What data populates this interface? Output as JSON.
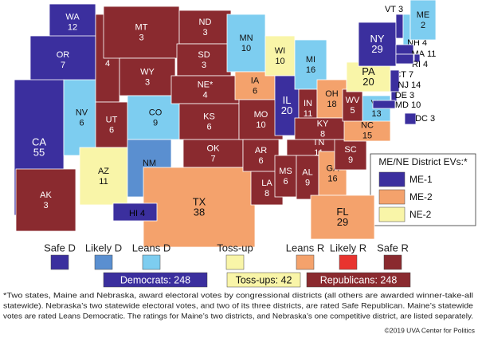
{
  "legend": [
    {
      "label": "Safe D",
      "color": "#3b2f9e"
    },
    {
      "label": "Likely D",
      "color": "#5a8fd0"
    },
    {
      "label": "Leans D",
      "color": "#7dcdf0"
    },
    {
      "label": "Toss-up",
      "color": "#f9f5a8"
    },
    {
      "label": "Leans R",
      "color": "#f4a26c"
    },
    {
      "label": "Likely R",
      "color": "#e8342f"
    },
    {
      "label": "Safe R",
      "color": "#8a2a2f"
    }
  ],
  "totals": [
    {
      "text": "Democrats: 248",
      "rating": "Safe D"
    },
    {
      "text": "Toss-ups: 42",
      "rating": "Toss-up"
    },
    {
      "text": "Republicans: 248",
      "rating": "Safe R"
    }
  ],
  "states": [
    {
      "abbr": "WA",
      "ev": 12,
      "rating": "Safe D"
    },
    {
      "abbr": "OR",
      "ev": 7,
      "rating": "Safe D"
    },
    {
      "abbr": "CA",
      "ev": 55,
      "rating": "Safe D"
    },
    {
      "abbr": "NV",
      "ev": 6,
      "rating": "Leans D"
    },
    {
      "abbr": "ID",
      "ev": 4,
      "rating": "Safe R"
    },
    {
      "abbr": "MT",
      "ev": 3,
      "rating": "Safe R"
    },
    {
      "abbr": "WY",
      "ev": 3,
      "rating": "Safe R"
    },
    {
      "abbr": "UT",
      "ev": 6,
      "rating": "Safe R"
    },
    {
      "abbr": "AZ",
      "ev": 11,
      "rating": "Toss-up"
    },
    {
      "abbr": "CO",
      "ev": 9,
      "rating": "Leans D"
    },
    {
      "abbr": "NM",
      "ev": 5,
      "rating": "Likely D"
    },
    {
      "abbr": "ND",
      "ev": 3,
      "rating": "Safe R"
    },
    {
      "abbr": "SD",
      "ev": 3,
      "rating": "Safe R"
    },
    {
      "abbr": "NE*",
      "ev": 4,
      "rating": "Safe R"
    },
    {
      "abbr": "KS",
      "ev": 6,
      "rating": "Safe R"
    },
    {
      "abbr": "OK",
      "ev": 7,
      "rating": "Safe R"
    },
    {
      "abbr": "TX",
      "ev": 38,
      "rating": "Leans R"
    },
    {
      "abbr": "MN",
      "ev": 10,
      "rating": "Leans D"
    },
    {
      "abbr": "IA",
      "ev": 6,
      "rating": "Leans R"
    },
    {
      "abbr": "MO",
      "ev": 10,
      "rating": "Safe R"
    },
    {
      "abbr": "AR",
      "ev": 6,
      "rating": "Safe R"
    },
    {
      "abbr": "LA",
      "ev": 8,
      "rating": "Safe R"
    },
    {
      "abbr": "WI",
      "ev": 10,
      "rating": "Toss-up"
    },
    {
      "abbr": "IL",
      "ev": 20,
      "rating": "Safe D"
    },
    {
      "abbr": "MI",
      "ev": 16,
      "rating": "Leans D"
    },
    {
      "abbr": "IN",
      "ev": 11,
      "rating": "Safe R"
    },
    {
      "abbr": "OH",
      "ev": 18,
      "rating": "Leans R"
    },
    {
      "abbr": "KY",
      "ev": 8,
      "rating": "Safe R"
    },
    {
      "abbr": "TN",
      "ev": 11,
      "rating": "Safe R"
    },
    {
      "abbr": "MS",
      "ev": 6,
      "rating": "Safe R"
    },
    {
      "abbr": "AL",
      "ev": 9,
      "rating": "Safe R"
    },
    {
      "abbr": "GA",
      "ev": 16,
      "rating": "Leans R"
    },
    {
      "abbr": "FL",
      "ev": 29,
      "rating": "Leans R"
    },
    {
      "abbr": "SC",
      "ev": 9,
      "rating": "Safe R"
    },
    {
      "abbr": "NC",
      "ev": 15,
      "rating": "Leans R"
    },
    {
      "abbr": "VA",
      "ev": 13,
      "rating": "Leans D"
    },
    {
      "abbr": "WV",
      "ev": 5,
      "rating": "Safe R"
    },
    {
      "abbr": "PA",
      "ev": 20,
      "rating": "Toss-up"
    },
    {
      "abbr": "NY",
      "ev": 29,
      "rating": "Safe D"
    },
    {
      "abbr": "VT",
      "ev": 3,
      "rating": "Safe D"
    },
    {
      "abbr": "NH",
      "ev": 4,
      "rating": "Leans D"
    },
    {
      "abbr": "ME",
      "ev": 2,
      "rating": "Leans D"
    },
    {
      "abbr": "MA",
      "ev": 11,
      "rating": "Safe D"
    },
    {
      "abbr": "RI",
      "ev": 4,
      "rating": "Safe D"
    },
    {
      "abbr": "CT",
      "ev": 7,
      "rating": "Safe D"
    },
    {
      "abbr": "NJ",
      "ev": 14,
      "rating": "Safe D"
    },
    {
      "abbr": "DE",
      "ev": 3,
      "rating": "Safe D"
    },
    {
      "abbr": "MD",
      "ev": 10,
      "rating": "Safe D"
    },
    {
      "abbr": "DC",
      "ev": 3,
      "rating": "Safe D"
    },
    {
      "abbr": "AK",
      "ev": 3,
      "rating": "Safe R"
    },
    {
      "abbr": "HI",
      "ev": 4,
      "rating": "Safe D"
    }
  ],
  "districts": {
    "title": "ME/NE District EVs:*",
    "items": [
      {
        "label": "ME-1",
        "rating": "Safe D"
      },
      {
        "label": "ME-2",
        "rating": "Leans R"
      },
      {
        "label": "NE-2",
        "rating": "Toss-up"
      }
    ]
  },
  "footnote": [
    "*Two states, Maine and Nebraska, award electoral votes by congressional districts (all others are awarded winner-take-all",
    "statewide). Nebraska’s two statewide electoral votes, and two of its three districts, are rated Safe Republican. Maine’s statewide",
    "votes are rated Leans Democratic. The ratings for Maine’s two districts, and Nebraska’s one competitive district, are listed separately."
  ],
  "credit": "©2019 UVA Center for Politics"
}
